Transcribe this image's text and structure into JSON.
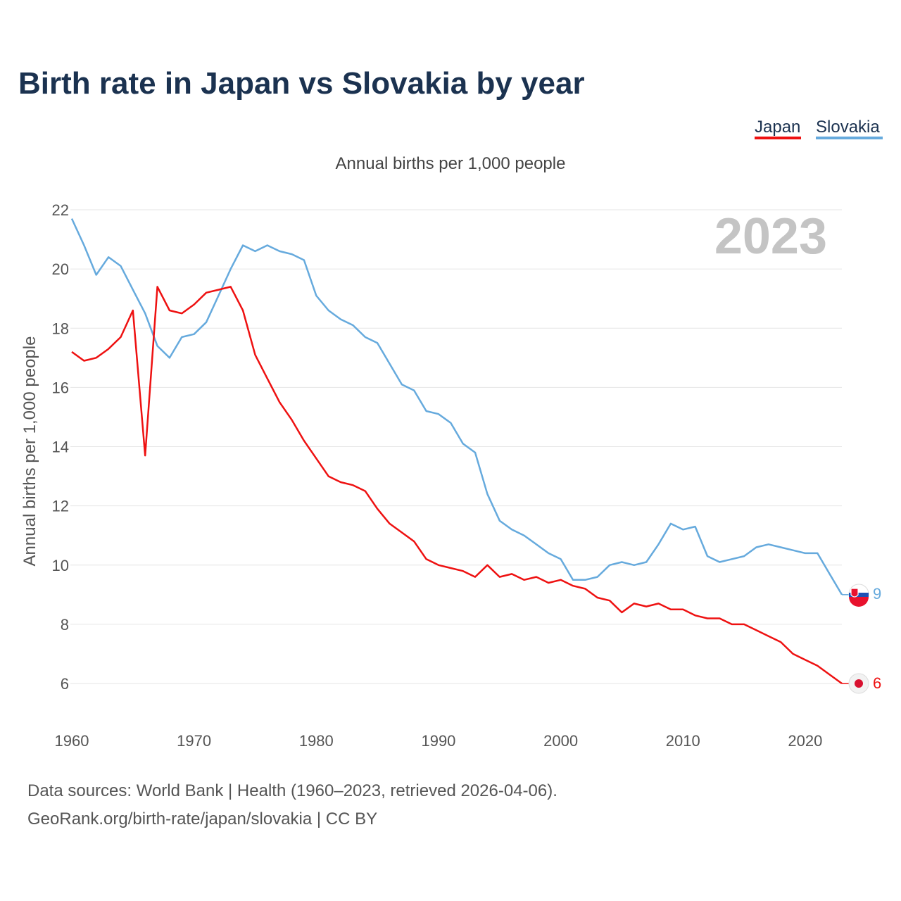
{
  "title": "Birth rate in Japan vs Slovakia by year",
  "subtitle": "Annual births per 1,000 people",
  "footer": {
    "line1": "Data sources: World Bank | Health (1960–2023, retrieved 2026-04-06).",
    "line2": "GeoRank.org/birth-rate/japan/slovakia | CC BY"
  },
  "colors": {
    "Japan": "#ee1111",
    "Slovakia": "#66aadd",
    "title": "#1b3250",
    "year": "#c4c4c4"
  },
  "chart_data": {
    "type": "line",
    "title": "Birth rate in Japan vs Slovakia by year",
    "subtitle": "Annual births per 1,000 people",
    "xlabel": "",
    "ylabel": "Annual births per 1,000 people",
    "xlim": [
      1960,
      2023
    ],
    "ylim": [
      5,
      22.5
    ],
    "xticks": [
      1960,
      1970,
      1980,
      1990,
      2000,
      2010,
      2020
    ],
    "yticks": [
      6,
      8,
      10,
      12,
      14,
      16,
      18,
      20,
      22
    ],
    "grid": true,
    "legend_position": "top-right",
    "highlight_year": "2023",
    "x": [
      1960,
      1961,
      1962,
      1963,
      1964,
      1965,
      1966,
      1967,
      1968,
      1969,
      1970,
      1971,
      1972,
      1973,
      1974,
      1975,
      1976,
      1977,
      1978,
      1979,
      1980,
      1981,
      1982,
      1983,
      1984,
      1985,
      1986,
      1987,
      1988,
      1989,
      1990,
      1991,
      1992,
      1993,
      1994,
      1995,
      1996,
      1997,
      1998,
      1999,
      2000,
      2001,
      2002,
      2003,
      2004,
      2005,
      2006,
      2007,
      2008,
      2009,
      2010,
      2011,
      2012,
      2013,
      2014,
      2015,
      2016,
      2017,
      2018,
      2019,
      2020,
      2021,
      2022,
      2023
    ],
    "series": [
      {
        "name": "Japan",
        "end_label": "6",
        "values": [
          17.2,
          16.9,
          17.0,
          17.3,
          17.7,
          18.6,
          13.7,
          19.4,
          18.6,
          18.5,
          18.8,
          19.2,
          19.3,
          19.4,
          18.6,
          17.1,
          16.3,
          15.5,
          14.9,
          14.2,
          13.6,
          13.0,
          12.8,
          12.7,
          12.5,
          11.9,
          11.4,
          11.1,
          10.8,
          10.2,
          10.0,
          9.9,
          9.8,
          9.6,
          10.0,
          9.6,
          9.7,
          9.5,
          9.6,
          9.4,
          9.5,
          9.3,
          9.2,
          8.9,
          8.8,
          8.4,
          8.7,
          8.6,
          8.7,
          8.5,
          8.5,
          8.3,
          8.2,
          8.2,
          8.0,
          8.0,
          7.8,
          7.6,
          7.4,
          7.0,
          6.8,
          6.6,
          6.3,
          6.0
        ]
      },
      {
        "name": "Slovakia",
        "end_label": "9",
        "values": [
          21.7,
          20.8,
          19.8,
          20.4,
          20.1,
          19.3,
          18.5,
          17.4,
          17.0,
          17.7,
          17.8,
          18.2,
          19.1,
          20.0,
          20.8,
          20.6,
          20.8,
          20.6,
          20.5,
          20.3,
          19.1,
          18.6,
          18.3,
          18.1,
          17.7,
          17.5,
          16.8,
          16.1,
          15.9,
          15.2,
          15.1,
          14.8,
          14.1,
          13.8,
          12.4,
          11.5,
          11.2,
          11.0,
          10.7,
          10.4,
          10.2,
          9.5,
          9.5,
          9.6,
          10.0,
          10.1,
          10.0,
          10.1,
          10.7,
          11.4,
          11.2,
          11.3,
          10.3,
          10.1,
          10.2,
          10.3,
          10.6,
          10.7,
          10.6,
          10.5,
          10.4,
          10.4,
          9.7,
          9.0
        ]
      }
    ]
  }
}
